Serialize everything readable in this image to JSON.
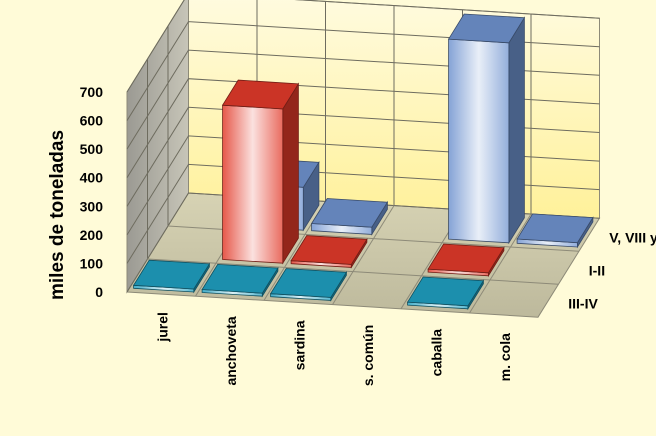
{
  "chart_data": {
    "type": "bar",
    "subtype": "3d-column",
    "title": "",
    "ylabel": "miles de toneladas",
    "xlabel": "",
    "ylim": [
      0,
      700
    ],
    "yticks": [
      0,
      100,
      200,
      300,
      400,
      500,
      600,
      700
    ],
    "grid": true,
    "legend": "none",
    "categories": [
      "jurel",
      "anchoveta",
      "sardina",
      "s. común",
      "caballa",
      "m. cola"
    ],
    "series": [
      {
        "name": "V, VIII y X",
        "color": "#6f93cf",
        "values": [
          0,
          150,
          25,
          0,
          700,
          15
        ]
      },
      {
        "name": "I-II",
        "color": "#e23a2a",
        "values": [
          0,
          540,
          10,
          0,
          10,
          0
        ]
      },
      {
        "name": "III-IV",
        "color": "#1f9fc0",
        "values": [
          5,
          10,
          5,
          0,
          5,
          0
        ]
      }
    ],
    "colors": {
      "wall": "#fff6a6",
      "floor": "#cfcaa8",
      "side_wall": "#a6a49a"
    }
  }
}
